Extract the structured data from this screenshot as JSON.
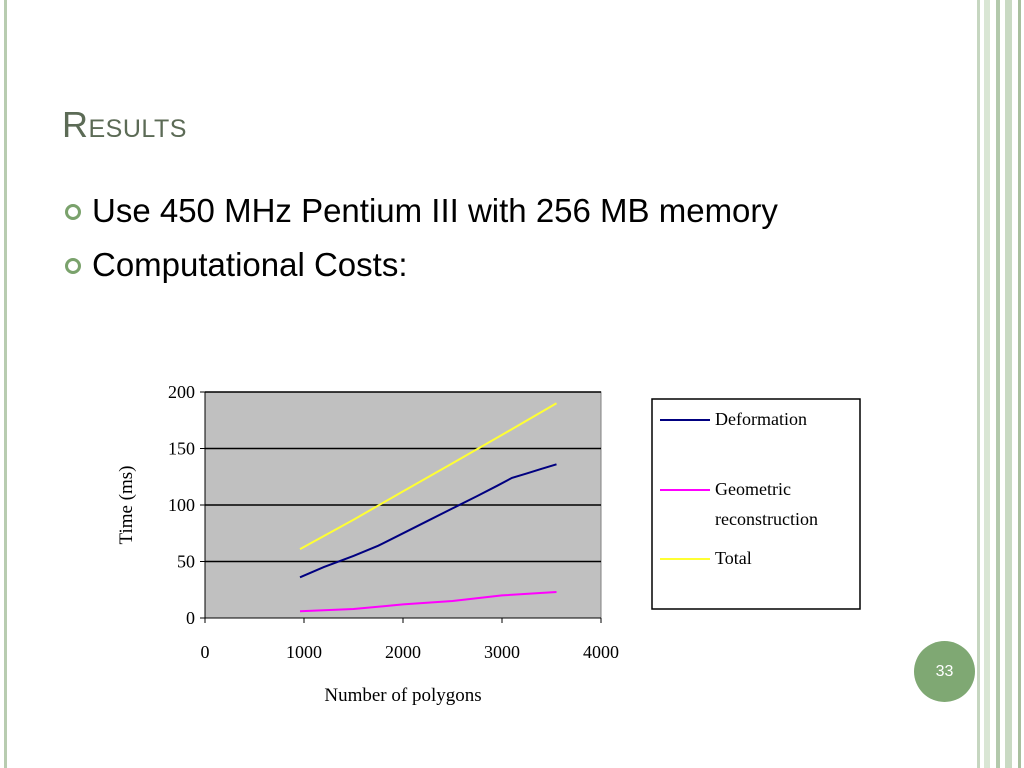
{
  "slide": {
    "title": "Results",
    "bullets": [
      "Use 450 MHz Pentium III with 256 MB memory",
      "Computational Costs:"
    ],
    "page_number": "33"
  },
  "colors": {
    "accent": "#7fa873",
    "title": "#5c6b56",
    "plot_area": "#c0c0c0",
    "deformation": "#000080",
    "geometric": "#ff00ff",
    "total": "#ffff33"
  },
  "chart_data": {
    "type": "line",
    "xlabel": "Number of polygons",
    "ylabel": "Time (ms)",
    "xlim": [
      0,
      4000
    ],
    "ylim": [
      0,
      200
    ],
    "x_ticks": [
      "0",
      "1000",
      "2000",
      "3000",
      "4000"
    ],
    "y_ticks": [
      "0",
      "50",
      "100",
      "150",
      "200"
    ],
    "grid": "horizontal",
    "legend": "right",
    "series": [
      {
        "name": "Deformation",
        "color": "#000080",
        "x": [
          960,
          1200,
          1500,
          1750,
          2000,
          2250,
          2500,
          2750,
          2950,
          3100,
          3250,
          3400,
          3550
        ],
        "y": [
          36,
          45,
          55,
          64,
          75,
          86,
          97,
          108,
          117,
          124,
          128,
          132,
          136
        ]
      },
      {
        "name": "Geometric reconstruction",
        "color": "#ff00ff",
        "x": [
          960,
          1500,
          2000,
          2500,
          3000,
          3550
        ],
        "y": [
          6,
          8,
          12,
          15,
          20,
          23
        ]
      },
      {
        "name": "Total",
        "color": "#ffff33",
        "x": [
          960,
          1500,
          2000,
          2500,
          3000,
          3550
        ],
        "y": [
          61,
          87,
          112,
          137,
          162,
          190
        ]
      }
    ]
  }
}
